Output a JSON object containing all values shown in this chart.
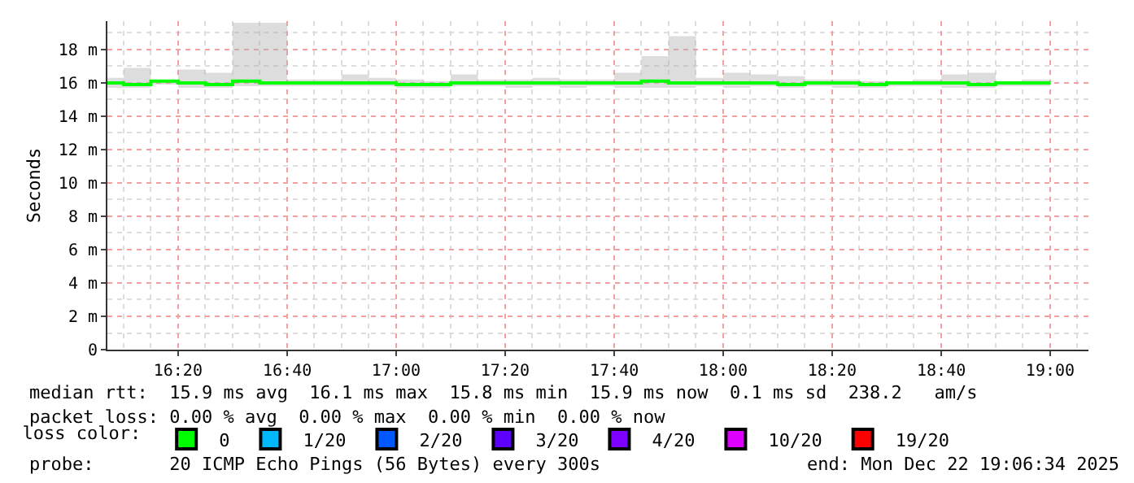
{
  "chart_data": {
    "type": "step",
    "ylabel": "Seconds",
    "legend_title": "loss color:",
    "x": [
      16.117,
      16.167,
      16.25,
      16.333,
      16.417,
      16.5,
      16.583,
      16.667,
      16.75,
      16.833,
      16.917,
      17.0,
      17.083,
      17.167,
      17.25,
      17.333,
      17.417,
      17.5,
      17.583,
      17.667,
      17.75,
      17.833,
      17.917,
      18.0,
      18.083,
      18.167,
      18.25,
      18.333,
      18.417,
      18.5,
      18.583,
      18.667,
      18.75,
      18.833,
      18.917,
      19.0
    ],
    "series": [
      {
        "name": "0",
        "color": "#00ff00",
        "values": [
          16.0,
          15.9,
          16.1,
          16.0,
          15.9,
          16.1,
          16.0,
          16.0,
          16.0,
          16.0,
          16.0,
          15.9,
          15.9,
          16.0,
          16.0,
          16.0,
          16.0,
          16.0,
          16.0,
          16.0,
          16.1,
          16.0,
          16.0,
          16.0,
          16.0,
          15.9,
          16.0,
          16.0,
          15.9,
          16.0,
          16.0,
          16.0,
          15.9,
          16.0,
          16.0,
          16.0
        ],
        "lower": [
          15.7,
          15.7,
          15.9,
          15.7,
          15.7,
          15.8,
          15.8,
          15.8,
          15.8,
          15.8,
          15.8,
          15.7,
          15.7,
          15.8,
          15.8,
          15.7,
          15.8,
          15.7,
          15.8,
          15.7,
          15.7,
          15.7,
          15.8,
          15.7,
          15.8,
          15.7,
          15.8,
          15.7,
          15.7,
          15.8,
          15.8,
          15.7,
          15.7,
          15.8,
          15.8,
          15.8
        ],
        "upper": [
          16.3,
          16.9,
          16.1,
          16.8,
          16.6,
          19.6,
          19.6,
          16.2,
          16.2,
          16.5,
          16.3,
          16.2,
          16.1,
          16.5,
          16.2,
          16.2,
          16.3,
          16.2,
          16.2,
          16.6,
          17.6,
          18.8,
          16.3,
          16.6,
          16.5,
          16.4,
          16.2,
          16.2,
          16.1,
          16.1,
          16.2,
          16.5,
          16.6,
          16.1,
          16.2,
          16.2
        ]
      },
      {
        "name": "1/20",
        "color": "#00b8ff",
        "values": [
          null,
          null,
          null,
          null,
          null,
          null,
          null,
          null,
          null,
          null,
          null,
          null,
          null,
          null,
          null,
          null,
          null,
          null,
          null,
          null,
          null,
          null,
          null,
          null,
          null,
          null,
          null,
          null,
          null,
          null,
          null,
          null,
          null,
          null,
          null,
          null
        ]
      },
      {
        "name": "2/20",
        "color": "#0059ff",
        "values": [
          null,
          null,
          null,
          null,
          null,
          null,
          null,
          null,
          null,
          null,
          null,
          null,
          null,
          null,
          null,
          null,
          null,
          null,
          null,
          null,
          null,
          null,
          null,
          null,
          null,
          null,
          null,
          null,
          null,
          null,
          null,
          null,
          null,
          null,
          null,
          null
        ]
      },
      {
        "name": "3/20",
        "color": "#5e00ff",
        "values": [
          null,
          null,
          null,
          null,
          null,
          null,
          null,
          null,
          null,
          null,
          null,
          null,
          null,
          null,
          null,
          null,
          null,
          null,
          null,
          null,
          null,
          null,
          null,
          null,
          null,
          null,
          null,
          null,
          null,
          null,
          null,
          null,
          null,
          null,
          null,
          null
        ]
      },
      {
        "name": "4/20",
        "color": "#7e00ff",
        "values": [
          null,
          null,
          null,
          null,
          null,
          null,
          null,
          null,
          null,
          null,
          null,
          null,
          null,
          null,
          null,
          null,
          null,
          null,
          null,
          null,
          null,
          null,
          null,
          null,
          null,
          null,
          null,
          null,
          null,
          null,
          null,
          null,
          null,
          null,
          null,
          null
        ]
      },
      {
        "name": "10/20",
        "color": "#dd00ff",
        "values": [
          null,
          null,
          null,
          null,
          null,
          null,
          null,
          null,
          null,
          null,
          null,
          null,
          null,
          null,
          null,
          null,
          null,
          null,
          null,
          null,
          null,
          null,
          null,
          null,
          null,
          null,
          null,
          null,
          null,
          null,
          null,
          null,
          null,
          null,
          null,
          null
        ]
      },
      {
        "name": "19/20",
        "color": "#ff0000",
        "values": [
          null,
          null,
          null,
          null,
          null,
          null,
          null,
          null,
          null,
          null,
          null,
          null,
          null,
          null,
          null,
          null,
          null,
          null,
          null,
          null,
          null,
          null,
          null,
          null,
          null,
          null,
          null,
          null,
          null,
          null,
          null,
          null,
          null,
          null,
          null,
          null
        ]
      }
    ],
    "xlim": [
      16.117,
      19.117
    ],
    "xticks": [
      {
        "value": 16.333,
        "label": "16:20"
      },
      {
        "value": 16.667,
        "label": "16:40"
      },
      {
        "value": 17.0,
        "label": "17:00"
      },
      {
        "value": 17.333,
        "label": "17:20"
      },
      {
        "value": 17.667,
        "label": "17:40"
      },
      {
        "value": 18.0,
        "label": "18:00"
      },
      {
        "value": 18.333,
        "label": "18:20"
      },
      {
        "value": 18.667,
        "label": "18:40"
      },
      {
        "value": 19.0,
        "label": "19:00"
      }
    ],
    "ylim": [
      0,
      19.7
    ],
    "yticks": [
      {
        "value": 0,
        "label": "0"
      },
      {
        "value": 2,
        "label": "2 m"
      },
      {
        "value": 4,
        "label": "4 m"
      },
      {
        "value": 6,
        "label": "6 m"
      },
      {
        "value": 8,
        "label": "8 m"
      },
      {
        "value": 10,
        "label": "10 m"
      },
      {
        "value": 12,
        "label": "12 m"
      },
      {
        "value": 14,
        "label": "14 m"
      },
      {
        "value": 16,
        "label": "16 m"
      },
      {
        "value": 18,
        "label": "18 m"
      }
    ],
    "grid": true,
    "legend": "bottom",
    "annotations": [
      "median rtt:  15.9 ms avg  16.1 ms max  15.8 ms min  15.9 ms now  0.1 ms sd  238.2   am/s",
      "packet loss: 0.00 % avg  0.00 % max  0.00 % min  0.00 % now",
      "probe:       20 ICMP Echo Pings (56 Bytes) every 300s",
      "end: Mon Dec 22 19:06:34 2025"
    ]
  }
}
